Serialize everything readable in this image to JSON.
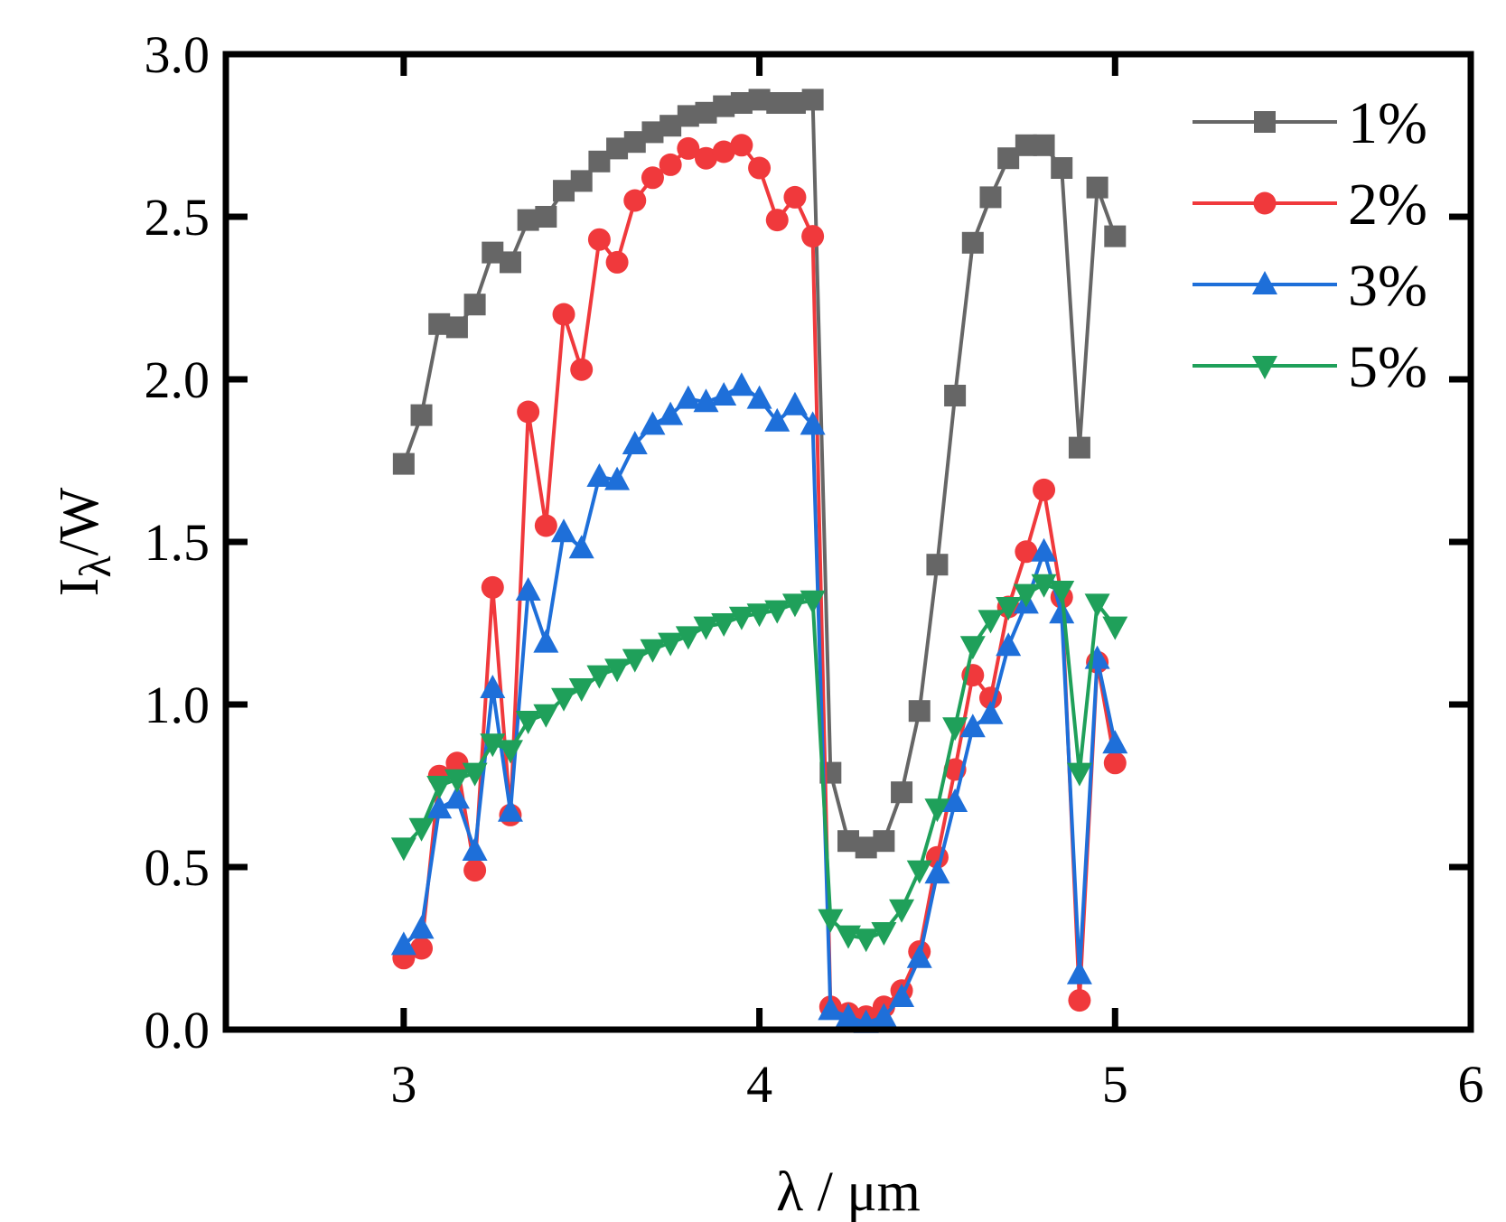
{
  "chart_data": {
    "type": "line",
    "title": "",
    "xlabel": "λ / μm",
    "ylabel_main": "I",
    "ylabel_sub": "λ",
    "ylabel_rest": "/W",
    "xlim": [
      2.5,
      6
    ],
    "ylim": [
      0,
      3
    ],
    "xticks": [
      3,
      4,
      5,
      6
    ],
    "xtick_labels": [
      "3",
      "4",
      "5",
      "6"
    ],
    "yticks": [
      0,
      0.5,
      1,
      1.5,
      2,
      2.5,
      3
    ],
    "ytick_labels": [
      "0.0",
      "0.5",
      "1.0",
      "1.5",
      "2.0",
      "2.5",
      "3.0"
    ],
    "legend_position": "top-right",
    "x": [
      3.0,
      3.05,
      3.1,
      3.15,
      3.2,
      3.25,
      3.3,
      3.35,
      3.4,
      3.45,
      3.5,
      3.55,
      3.6,
      3.65,
      3.7,
      3.75,
      3.8,
      3.85,
      3.9,
      3.95,
      4.0,
      4.05,
      4.1,
      4.15,
      4.2,
      4.25,
      4.3,
      4.35,
      4.4,
      4.45,
      4.5,
      4.55,
      4.6,
      4.65,
      4.7,
      4.75,
      4.8,
      4.85,
      4.9,
      4.95,
      5.0
    ],
    "series": [
      {
        "name": "1%",
        "color": "#666666",
        "marker": "square",
        "values": [
          1.74,
          1.89,
          2.17,
          2.16,
          2.23,
          2.39,
          2.36,
          2.49,
          2.5,
          2.58,
          2.61,
          2.67,
          2.71,
          2.73,
          2.76,
          2.78,
          2.81,
          2.82,
          2.84,
          2.85,
          2.86,
          2.85,
          2.85,
          2.86,
          0.79,
          0.58,
          0.56,
          0.58,
          0.73,
          0.98,
          1.43,
          1.95,
          2.42,
          2.56,
          2.68,
          2.72,
          2.72,
          2.65,
          1.79,
          2.59,
          2.44
        ]
      },
      {
        "name": "2%",
        "color": "#f0393c",
        "marker": "circle",
        "values": [
          0.22,
          0.25,
          0.78,
          0.82,
          0.49,
          1.36,
          0.66,
          1.9,
          1.55,
          2.2,
          2.03,
          2.43,
          2.36,
          2.55,
          2.62,
          2.66,
          2.71,
          2.68,
          2.7,
          2.72,
          2.65,
          2.49,
          2.56,
          2.44,
          0.07,
          0.05,
          0.04,
          0.07,
          0.12,
          0.24,
          0.53,
          0.8,
          1.09,
          1.02,
          1.3,
          1.47,
          1.66,
          1.33,
          0.09,
          1.13,
          0.82
        ]
      },
      {
        "name": "3%",
        "color": "#1e6fd9",
        "marker": "triangle-up",
        "values": [
          0.26,
          0.31,
          0.68,
          0.71,
          0.55,
          1.05,
          0.67,
          1.35,
          1.19,
          1.53,
          1.48,
          1.7,
          1.69,
          1.8,
          1.86,
          1.89,
          1.94,
          1.93,
          1.95,
          1.98,
          1.94,
          1.87,
          1.92,
          1.86,
          0.06,
          0.04,
          0.02,
          0.04,
          0.1,
          0.22,
          0.48,
          0.7,
          0.93,
          0.97,
          1.18,
          1.31,
          1.47,
          1.28,
          0.17,
          1.14,
          0.88
        ]
      },
      {
        "name": "5%",
        "color": "#1fa05a",
        "marker": "triangle-down",
        "values": [
          0.56,
          0.62,
          0.75,
          0.77,
          0.79,
          0.88,
          0.86,
          0.95,
          0.97,
          1.02,
          1.05,
          1.09,
          1.11,
          1.14,
          1.17,
          1.19,
          1.21,
          1.24,
          1.25,
          1.27,
          1.28,
          1.29,
          1.31,
          1.32,
          0.34,
          0.29,
          0.28,
          0.3,
          0.37,
          0.49,
          0.68,
          0.93,
          1.18,
          1.26,
          1.3,
          1.34,
          1.37,
          1.35,
          0.79,
          1.31,
          1.24
        ]
      }
    ]
  }
}
